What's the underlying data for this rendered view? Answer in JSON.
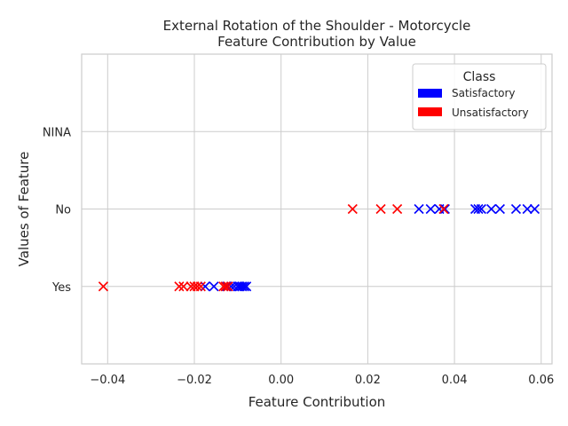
{
  "chart_data": {
    "type": "scatter",
    "title": "External Rotation of the Shoulder - Motorcycle\nFeature Contribution by Value",
    "xlabel": "Feature Contribution",
    "ylabel": "Values of Feature",
    "x_ticks": [
      -0.04,
      -0.02,
      0.0,
      0.02,
      0.04,
      0.06
    ],
    "x_tick_labels": [
      "−0.04",
      "−0.02",
      "0.00",
      "0.02",
      "0.04",
      "0.06"
    ],
    "xlim": [
      -0.046,
      0.0625
    ],
    "y_categories": [
      "Yes",
      "No",
      "NINA"
    ],
    "ylim_index": [
      -1,
      3
    ],
    "grid": true,
    "legend": {
      "title": "Class",
      "position": "top-right",
      "entries": [
        {
          "label": "Satisfactory",
          "color": "#0000ff"
        },
        {
          "label": "Unsatisfactory",
          "color": "#ff0000"
        }
      ]
    },
    "series": [
      {
        "name": "Satisfactory",
        "color": "#0000ff",
        "marker": "x",
        "points": [
          {
            "x": -0.0175,
            "y": "Yes"
          },
          {
            "x": -0.0155,
            "y": "Yes"
          },
          {
            "x": -0.0125,
            "y": "Yes"
          },
          {
            "x": -0.0115,
            "y": "Yes"
          },
          {
            "x": -0.0108,
            "y": "Yes"
          },
          {
            "x": -0.01,
            "y": "Yes"
          },
          {
            "x": -0.0095,
            "y": "Yes"
          },
          {
            "x": -0.009,
            "y": "Yes"
          },
          {
            "x": -0.0085,
            "y": "Yes"
          },
          {
            "x": -0.008,
            "y": "Yes"
          },
          {
            "x": 0.0318,
            "y": "No"
          },
          {
            "x": 0.0345,
            "y": "No"
          },
          {
            "x": 0.0365,
            "y": "No"
          },
          {
            "x": 0.0378,
            "y": "No"
          },
          {
            "x": 0.0448,
            "y": "No"
          },
          {
            "x": 0.0455,
            "y": "No"
          },
          {
            "x": 0.0462,
            "y": "No"
          },
          {
            "x": 0.0485,
            "y": "No"
          },
          {
            "x": 0.0505,
            "y": "No"
          },
          {
            "x": 0.0542,
            "y": "No"
          },
          {
            "x": 0.0568,
            "y": "No"
          },
          {
            "x": 0.0585,
            "y": "No"
          }
        ]
      },
      {
        "name": "Unsatisfactory",
        "color": "#ff0000",
        "marker": "x",
        "points": [
          {
            "x": -0.041,
            "y": "Yes"
          },
          {
            "x": -0.0235,
            "y": "Yes"
          },
          {
            "x": -0.0225,
            "y": "Yes"
          },
          {
            "x": -0.0208,
            "y": "Yes"
          },
          {
            "x": -0.02,
            "y": "Yes"
          },
          {
            "x": -0.0193,
            "y": "Yes"
          },
          {
            "x": -0.0185,
            "y": "Yes"
          },
          {
            "x": -0.0133,
            "y": "Yes"
          },
          {
            "x": -0.0128,
            "y": "Yes"
          },
          {
            "x": -0.0122,
            "y": "Yes"
          },
          {
            "x": 0.0165,
            "y": "No"
          },
          {
            "x": 0.023,
            "y": "No"
          },
          {
            "x": 0.0268,
            "y": "No"
          },
          {
            "x": 0.0375,
            "y": "No"
          }
        ]
      }
    ]
  }
}
